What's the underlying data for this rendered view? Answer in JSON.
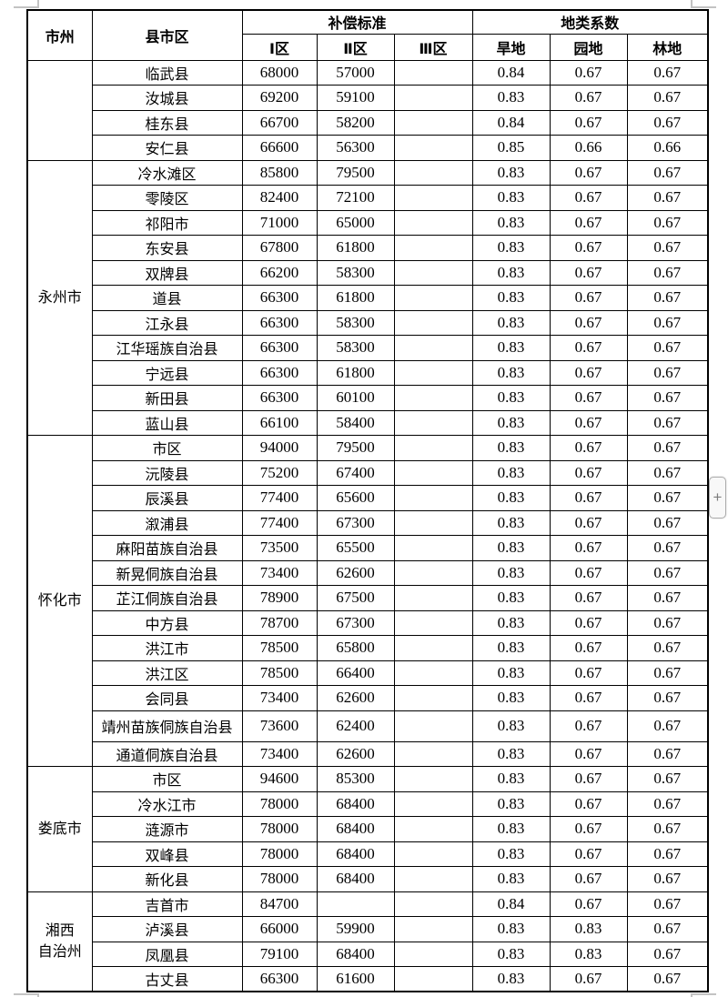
{
  "page": {
    "plus_button_label": "+"
  },
  "table": {
    "headers": {
      "city": "市州",
      "county": "县市区",
      "compensation": "补偿标准",
      "zones": [
        "Ⅰ区",
        "Ⅱ区",
        "Ⅲ区"
      ],
      "coefficient": "地类系数",
      "land_types": [
        "旱地",
        "园地",
        "林地"
      ]
    },
    "groups": [
      {
        "city": "",
        "rows": [
          [
            "临武县",
            "68000",
            "57000",
            "",
            "0.84",
            "0.67",
            "0.67"
          ],
          [
            "汝城县",
            "69200",
            "59100",
            "",
            "0.83",
            "0.67",
            "0.67"
          ],
          [
            "桂东县",
            "66700",
            "58200",
            "",
            "0.84",
            "0.67",
            "0.67"
          ],
          [
            "安仁县",
            "66600",
            "56300",
            "",
            "0.85",
            "0.66",
            "0.66"
          ]
        ]
      },
      {
        "city": "永州市",
        "rows": [
          [
            "冷水滩区",
            "85800",
            "79500",
            "",
            "0.83",
            "0.67",
            "0.67"
          ],
          [
            "零陵区",
            "82400",
            "72100",
            "",
            "0.83",
            "0.67",
            "0.67"
          ],
          [
            "祁阳市",
            "71000",
            "65000",
            "",
            "0.83",
            "0.67",
            "0.67"
          ],
          [
            "东安县",
            "67800",
            "61800",
            "",
            "0.83",
            "0.67",
            "0.67"
          ],
          [
            "双牌县",
            "66200",
            "58300",
            "",
            "0.83",
            "0.67",
            "0.67"
          ],
          [
            "道县",
            "66300",
            "61800",
            "",
            "0.83",
            "0.67",
            "0.67"
          ],
          [
            "江永县",
            "66300",
            "58300",
            "",
            "0.83",
            "0.67",
            "0.67"
          ],
          [
            "江华瑶族自治县",
            "66300",
            "58300",
            "",
            "0.83",
            "0.67",
            "0.67"
          ],
          [
            "宁远县",
            "66300",
            "61800",
            "",
            "0.83",
            "0.67",
            "0.67"
          ],
          [
            "新田县",
            "66300",
            "60100",
            "",
            "0.83",
            "0.67",
            "0.67"
          ],
          [
            "蓝山县",
            "66100",
            "58400",
            "",
            "0.83",
            "0.67",
            "0.67"
          ]
        ]
      },
      {
        "city": "怀化市",
        "rows": [
          [
            "市区",
            "94000",
            "79500",
            "",
            "0.83",
            "0.67",
            "0.67"
          ],
          [
            "沅陵县",
            "75200",
            "67400",
            "",
            "0.83",
            "0.67",
            "0.67"
          ],
          [
            "辰溪县",
            "77400",
            "65600",
            "",
            "0.83",
            "0.67",
            "0.67"
          ],
          [
            "溆浦县",
            "77400",
            "67300",
            "",
            "0.83",
            "0.67",
            "0.67"
          ],
          [
            "麻阳苗族自治县",
            "73500",
            "65500",
            "",
            "0.83",
            "0.67",
            "0.67"
          ],
          [
            "新晃侗族自治县",
            "73400",
            "62600",
            "",
            "0.83",
            "0.67",
            "0.67"
          ],
          [
            "芷江侗族自治县",
            "78900",
            "67500",
            "",
            "0.83",
            "0.67",
            "0.67"
          ],
          [
            "中方县",
            "78700",
            "67300",
            "",
            "0.83",
            "0.67",
            "0.67"
          ],
          [
            "洪江市",
            "78500",
            "65800",
            "",
            "0.83",
            "0.67",
            "0.67"
          ],
          [
            "洪江区",
            "78500",
            "66400",
            "",
            "0.83",
            "0.67",
            "0.67"
          ],
          [
            "会同县",
            "73400",
            "62600",
            "",
            "0.83",
            "0.67",
            "0.67"
          ],
          [
            "靖州苗族侗族自治县",
            "73600",
            "62400",
            "",
            "0.83",
            "0.67",
            "0.67"
          ],
          [
            "通道侗族自治县",
            "73400",
            "62600",
            "",
            "0.83",
            "0.67",
            "0.67"
          ]
        ]
      },
      {
        "city": "娄底市",
        "rows": [
          [
            "市区",
            "94600",
            "85300",
            "",
            "0.83",
            "0.67",
            "0.67"
          ],
          [
            "冷水江市",
            "78000",
            "68400",
            "",
            "0.83",
            "0.67",
            "0.67"
          ],
          [
            "涟源市",
            "78000",
            "68400",
            "",
            "0.83",
            "0.67",
            "0.67"
          ],
          [
            "双峰县",
            "78000",
            "68400",
            "",
            "0.83",
            "0.67",
            "0.67"
          ],
          [
            "新化县",
            "78000",
            "68400",
            "",
            "0.83",
            "0.67",
            "0.67"
          ]
        ]
      },
      {
        "city": "湘西\n自治州",
        "rows": [
          [
            "吉首市",
            "84700",
            "",
            "",
            "0.84",
            "0.67",
            "0.67"
          ],
          [
            "泸溪县",
            "66000",
            "59900",
            "",
            "0.83",
            "0.83",
            "0.67"
          ],
          [
            "凤凰县",
            "79100",
            "68400",
            "",
            "0.83",
            "0.83",
            "0.67"
          ],
          [
            "古丈县",
            "66300",
            "61600",
            "",
            "0.83",
            "0.67",
            "0.67"
          ]
        ]
      }
    ]
  }
}
